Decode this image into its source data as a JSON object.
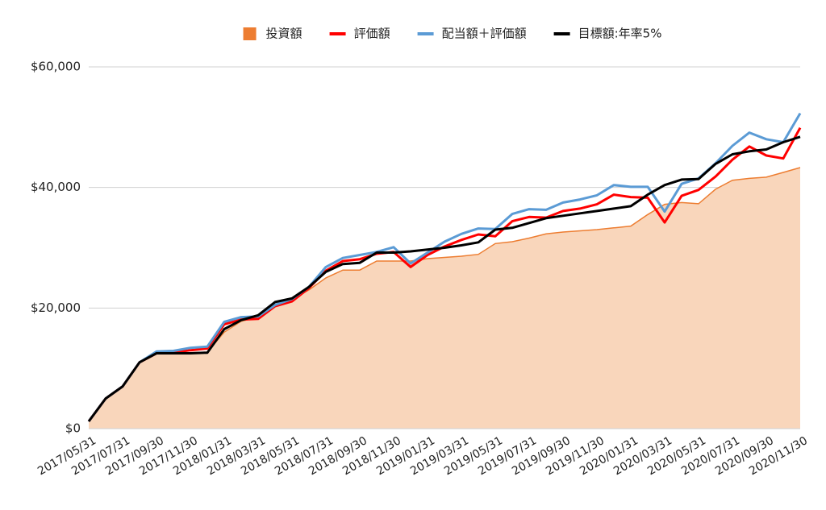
{
  "chart_data": {
    "type": "line",
    "categories": [
      "2017/05/31",
      null,
      "2017/07/31",
      null,
      "2017/09/30",
      null,
      "2017/11/30",
      null,
      "2018/01/31",
      null,
      "2018/03/31",
      null,
      "2018/05/31",
      null,
      "2018/07/31",
      null,
      "2018/09/30",
      null,
      "2018/11/30",
      null,
      "2019/01/31",
      null,
      "2019/03/31",
      null,
      "2019/05/31",
      null,
      "2019/07/31",
      null,
      "2019/09/30",
      null,
      "2019/11/30",
      null,
      "2020/01/31",
      null,
      "2020/03/31",
      null,
      "2020/05/31",
      null,
      "2020/07/31",
      null,
      "2020/09/30",
      null,
      "2020/11/30"
    ],
    "series": [
      {
        "name": "投資額",
        "color": "#ed7d31",
        "fill": "#f9d6bb",
        "kind": "area",
        "values": [
          1200,
          5000,
          7000,
          11000,
          12500,
          12500,
          12600,
          12700,
          16000,
          17800,
          18500,
          20500,
          21500,
          23000,
          25000,
          26300,
          26300,
          27800,
          27800,
          27800,
          28200,
          28400,
          28600,
          28900,
          30700,
          31000,
          31600,
          32300,
          32600,
          32800,
          33000,
          33300,
          33600,
          35500,
          37200,
          37500,
          37300,
          39700,
          41200,
          41500,
          41700,
          42500,
          43300
        ]
      },
      {
        "name": "評価額",
        "color": "#ff0000",
        "kind": "line",
        "values": [
          1200,
          5000,
          7000,
          11000,
          12500,
          12600,
          13000,
          13300,
          17300,
          18100,
          18200,
          20300,
          21100,
          23300,
          26200,
          27800,
          28100,
          29000,
          29300,
          26800,
          28800,
          30200,
          31300,
          32200,
          31900,
          34400,
          35100,
          35000,
          36100,
          36500,
          37200,
          38800,
          38400,
          38300,
          34200,
          38600,
          39600,
          41800,
          44600,
          46800,
          45300,
          44800,
          49900
        ]
      },
      {
        "name": "配当額＋評価額",
        "color": "#5b9bd5",
        "kind": "line",
        "values": [
          1200,
          5000,
          7000,
          11000,
          12800,
          12900,
          13400,
          13600,
          17700,
          18500,
          18600,
          20500,
          21500,
          23500,
          26800,
          28300,
          28800,
          29300,
          30100,
          27400,
          29200,
          31000,
          32300,
          33200,
          33100,
          35600,
          36400,
          36300,
          37500,
          38000,
          38700,
          40400,
          40100,
          40100,
          36000,
          40600,
          41500,
          44000,
          46900,
          49100,
          48000,
          47500,
          52300
        ]
      },
      {
        "name": "目標額:年率5%",
        "color": "#000000",
        "kind": "line",
        "values": [
          1200,
          5000,
          7000,
          11000,
          12500,
          12500,
          12500,
          12600,
          16500,
          18000,
          18800,
          21000,
          21600,
          23500,
          26000,
          27300,
          27500,
          29200,
          29200,
          29400,
          29700,
          30000,
          30400,
          30900,
          33000,
          33300,
          34100,
          34900,
          35300,
          35700,
          36100,
          36500,
          36900,
          38800,
          40400,
          41300,
          41400,
          43900,
          45500,
          46000,
          46300,
          47500,
          48400
        ]
      }
    ],
    "ylim": [
      0,
      60000
    ],
    "yticks": [
      {
        "value": 0,
        "label": "$0"
      },
      {
        "value": 20000,
        "label": "$20,000"
      },
      {
        "value": 40000,
        "label": "$40,000"
      },
      {
        "value": 60000,
        "label": "$60,000"
      }
    ],
    "grid": true,
    "legend": "top"
  }
}
